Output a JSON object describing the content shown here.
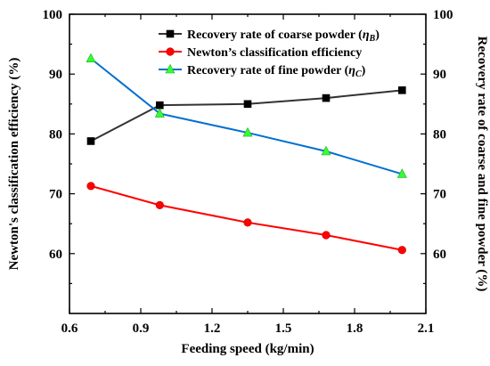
{
  "chart_data": {
    "type": "line",
    "xlabel": "Feeding speed (kg/min)",
    "ylabel_left": "Newton's classification efficiency (%)",
    "ylabel_right": "Recovery rate of coarse and fine powder (%)",
    "xlim": [
      0.6,
      2.1
    ],
    "ylim_left": [
      50,
      100
    ],
    "ylim_right": [
      50,
      100
    ],
    "x_ticks": [
      0.6,
      0.9,
      1.2,
      1.5,
      1.8,
      2.1
    ],
    "x_tick_labels": [
      "0.6",
      "0.9",
      "1.2",
      "1.5",
      "1.8",
      "2.1"
    ],
    "y_ticks": [
      60,
      70,
      80,
      90,
      100
    ],
    "y_tick_labels": [
      "60",
      "70",
      "80",
      "90",
      "100"
    ],
    "grid": false,
    "legend_position": "top-right",
    "series": [
      {
        "name": "Recovery rate of coarse powder (ηB)",
        "name_main": "Recovery rate of coarse powder (",
        "name_symbol": "η",
        "name_sub": "B",
        "name_close": ")",
        "axis": "right",
        "color": "#333333",
        "marker": "square",
        "x": [
          0.69,
          0.98,
          1.35,
          1.68,
          2.0
        ],
        "values": [
          78.8,
          84.8,
          85.0,
          86.0,
          87.3
        ]
      },
      {
        "name": "Newton's classification efficiency",
        "name_main": "Newton’s classification efficiency",
        "name_symbol": "",
        "name_sub": "",
        "name_close": "",
        "axis": "left",
        "color": "#ff0000",
        "marker": "circle",
        "x": [
          0.69,
          0.98,
          1.35,
          1.68,
          2.0
        ],
        "values": [
          71.3,
          68.1,
          65.2,
          63.1,
          60.6
        ]
      },
      {
        "name": "Recovery rate of fine powder (ηC)",
        "name_main": "Recovery rate of fine powder (",
        "name_symbol": "η",
        "name_sub": "C",
        "name_close": ")",
        "axis": "right",
        "color": "#0070d0",
        "marker_color": "#33ff33",
        "marker": "triangle",
        "x": [
          0.69,
          0.98,
          1.35,
          1.68,
          2.0
        ],
        "values": [
          92.6,
          83.4,
          80.2,
          77.1,
          73.3
        ]
      }
    ]
  }
}
